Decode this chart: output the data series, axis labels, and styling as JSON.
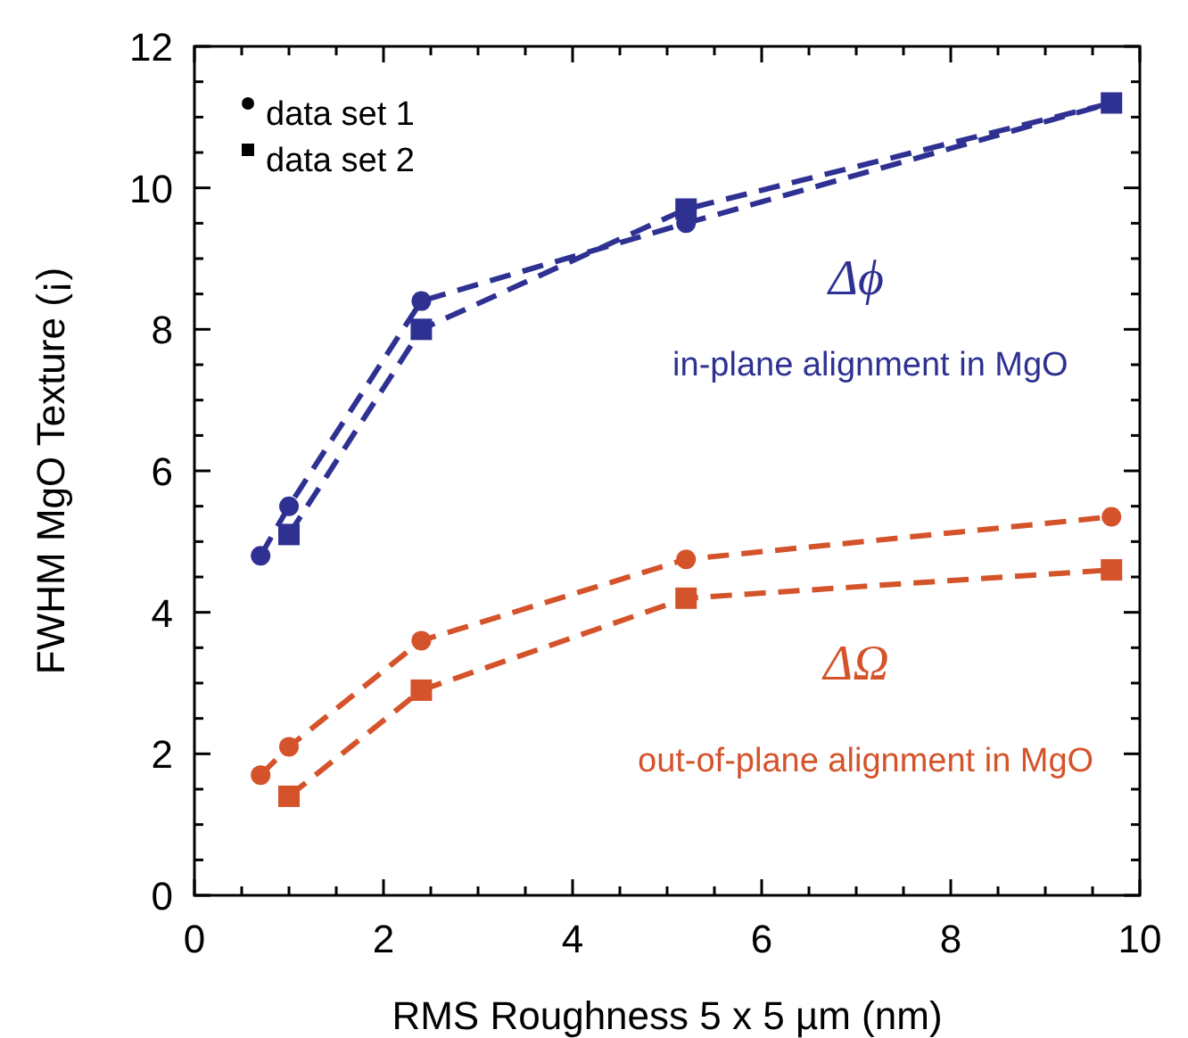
{
  "chart_data": {
    "type": "line",
    "xlabel": "RMS Roughness 5 x 5 µm (nm)",
    "ylabel": "FWHM MgO Texture (¡)",
    "xlim": [
      0,
      10
    ],
    "ylim": [
      0,
      12
    ],
    "xticks": [
      0,
      {
        "value": 0.5,
        "label": null
      },
      {
        "value": 1,
        "label": null
      },
      {
        "value": 1.5,
        "label": null
      },
      2,
      {
        "value": 2.5,
        "label": null
      },
      {
        "value": 3,
        "label": null
      },
      {
        "value": 3.5,
        "label": null
      },
      4,
      {
        "value": 4.5,
        "label": null
      },
      {
        "value": 5,
        "label": null
      },
      {
        "value": 5.5,
        "label": null
      },
      6,
      {
        "value": 6.5,
        "label": null
      },
      {
        "value": 7,
        "label": null
      },
      {
        "value": 7.5,
        "label": null
      },
      8,
      {
        "value": 8.5,
        "label": null
      },
      {
        "value": 9,
        "label": null
      },
      {
        "value": 9.5,
        "label": null
      },
      10
    ],
    "yticks": [
      0,
      {
        "value": 0.5,
        "label": null
      },
      {
        "value": 1,
        "label": null
      },
      {
        "value": 1.5,
        "label": null
      },
      2,
      {
        "value": 2.5,
        "label": null
      },
      {
        "value": 3,
        "label": null
      },
      {
        "value": 3.5,
        "label": null
      },
      4,
      {
        "value": 4.5,
        "label": null
      },
      {
        "value": 5,
        "label": null
      },
      {
        "value": 5.5,
        "label": null
      },
      6,
      {
        "value": 6.5,
        "label": null
      },
      {
        "value": 7,
        "label": null
      },
      {
        "value": 7.5,
        "label": null
      },
      8,
      {
        "value": 8.5,
        "label": null
      },
      {
        "value": 9,
        "label": null
      },
      {
        "value": 9.5,
        "label": null
      },
      10,
      {
        "value": 10.5,
        "label": null
      },
      {
        "value": 11,
        "label": null
      },
      {
        "value": 11.5,
        "label": null
      },
      12
    ],
    "grid": false,
    "line_style": "dashed",
    "annotations": [
      "data set 1",
      "data set 2",
      "Δϕ",
      "in-plane alignment in MgO",
      "ΔΩ",
      "out-of-plane alignment in MgO"
    ],
    "series": [
      {
        "marker": "circle",
        "color": "#2e3192",
        "x": [
          0.7,
          1,
          2.4,
          5.2,
          9.7
        ],
        "values": [
          4.8,
          5.5,
          8.4,
          9.5,
          11.2
        ]
      },
      {
        "marker": "square",
        "color": "#2e3192",
        "x": [
          1,
          2.4,
          5.2,
          9.7
        ],
        "values": [
          5.1,
          8.0,
          9.7,
          11.2
        ]
      },
      {
        "marker": "circle",
        "color": "#d4532a",
        "x": [
          0.7,
          1,
          2.4,
          5.2,
          9.7
        ],
        "values": [
          1.7,
          2.1,
          3.6,
          4.75,
          5.35
        ]
      },
      {
        "marker": "square",
        "color": "#d4532a",
        "x": [
          1,
          2.4,
          5.2,
          9.7
        ],
        "values": [
          1.4,
          2.9,
          4.2,
          4.6
        ]
      }
    ]
  }
}
